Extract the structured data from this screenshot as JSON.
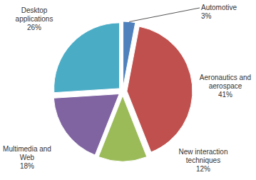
{
  "chart_data": {
    "type": "pie",
    "categories": [
      "Automotive",
      "Aeronautics and aerospace",
      "New interaction techniques",
      "Multimedia and Web",
      "Desktop applications"
    ],
    "values": [
      3,
      41,
      12,
      18,
      26
    ],
    "value_labels": [
      "3%",
      "41%",
      "12%",
      "18%",
      "26%"
    ],
    "colors": [
      "#4f81bd",
      "#c0504d",
      "#9bbb59",
      "#8064a2",
      "#4bacc6"
    ]
  }
}
